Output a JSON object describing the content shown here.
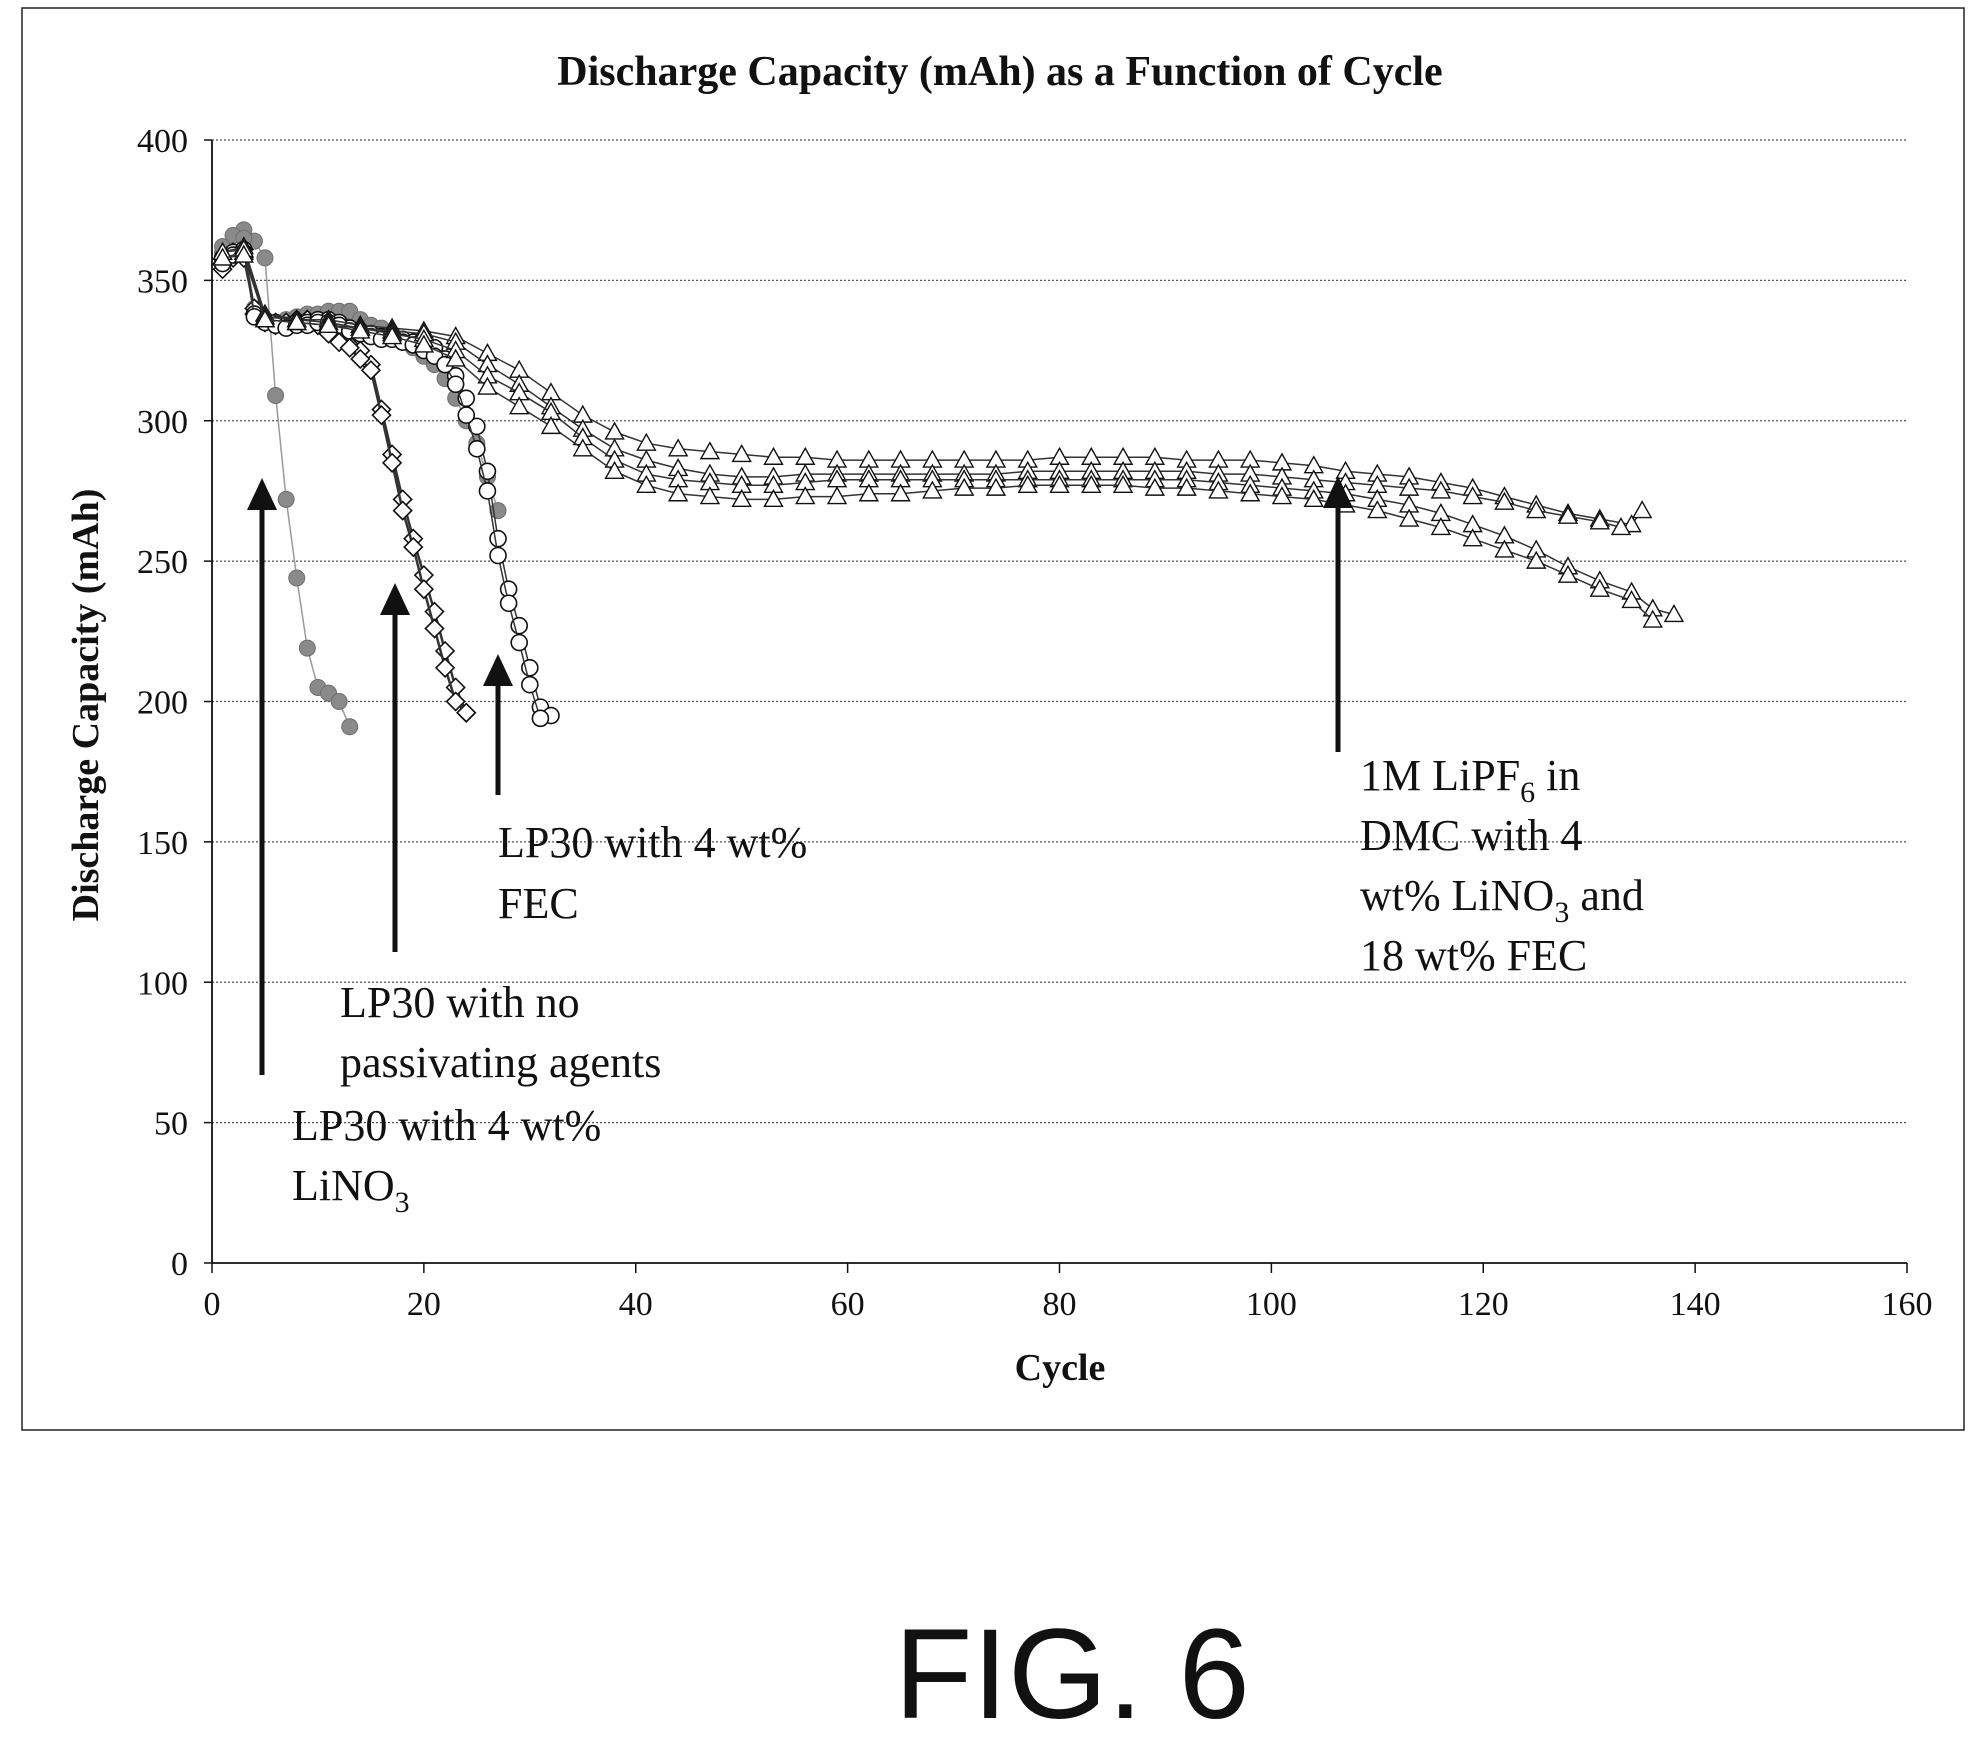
{
  "chart_data": {
    "type": "scatter",
    "title": "Discharge Capacity (mAh) as a Function of Cycle",
    "xlabel": "Cycle",
    "ylabel": "Discharge Capacity (mAh)",
    "xlim": [
      0,
      160
    ],
    "ylim": [
      0,
      400
    ],
    "xticks": [
      "0",
      "20",
      "40",
      "60",
      "80",
      "100",
      "120",
      "140",
      "160"
    ],
    "yticks": [
      "0",
      "50",
      "100",
      "150",
      "200",
      "250",
      "300",
      "350",
      "400"
    ],
    "grid": "horizontal dotted",
    "legend": "none",
    "series": [
      {
        "marker": "filled-circle",
        "color": "#8a8a8a",
        "cells": [
          {
            "x": [
              1,
              2,
              3,
              4,
              5,
              6,
              7,
              8,
              9,
              10,
              11,
              12,
              13
            ],
            "y": [
              360,
              366,
              368,
              364,
              358,
              309,
              272,
              244,
              219,
              205,
              203,
              200,
              191
            ]
          },
          {
            "x": [
              1,
              2,
              3,
              4,
              5,
              6,
              7,
              8,
              9,
              10,
              11,
              12,
              13,
              14,
              15,
              16,
              17,
              18,
              19,
              20,
              21,
              22,
              23,
              24,
              25,
              26,
              27
            ],
            "y": [
              362,
              366,
              365,
              340,
              336,
              334,
              336,
              337,
              338,
              338,
              339,
              339,
              339,
              336,
              334,
              333,
              331,
              329,
              326,
              323,
              320,
              315,
              308,
              300,
              292,
              280,
              268
            ]
          }
        ]
      },
      {
        "marker": "open-diamond",
        "color": "#111111",
        "cells": [
          {
            "x": [
              1,
              2,
              3,
              4,
              5,
              6,
              7,
              8,
              9,
              10,
              11,
              12,
              13,
              14,
              15,
              16,
              17,
              18,
              19,
              20,
              21,
              22,
              23,
              24
            ],
            "y": [
              356,
              360,
              361,
              338,
              335,
              334,
              335,
              336,
              336,
              334,
              332,
              329,
              327,
              325,
              320,
              304,
              288,
              272,
              258,
              245,
              232,
              218,
              205,
              196
            ]
          },
          {
            "x": [
              1,
              2,
              3,
              4,
              5,
              6,
              7,
              8,
              9,
              10,
              11,
              12,
              13,
              14,
              15,
              16,
              17,
              18,
              19,
              20,
              21,
              22,
              23,
              24
            ],
            "y": [
              354,
              358,
              358,
              340,
              336,
              335,
              335,
              336,
              336,
              334,
              331,
              328,
              326,
              322,
              318,
              302,
              285,
              268,
              255,
              240,
              226,
              212,
              200,
              196
            ]
          }
        ]
      },
      {
        "marker": "open-circle",
        "color": "#111111",
        "cells": [
          {
            "x": [
              1,
              2,
              3,
              4,
              5,
              6,
              7,
              8,
              9,
              10,
              11,
              12,
              13,
              14,
              15,
              16,
              17,
              18,
              19,
              20,
              21,
              22,
              23,
              24,
              25,
              26,
              27,
              28,
              29,
              30,
              31,
              32
            ],
            "y": [
              358,
              360,
              361,
              338,
              336,
              335,
              334,
              335,
              335,
              336,
              336,
              335,
              333,
              332,
              331,
              330,
              330,
              329,
              328,
              327,
              326,
              322,
              316,
              308,
              298,
              282,
              258,
              240,
              227,
              212,
              198,
              195
            ]
          },
          {
            "x": [
              1,
              2,
              3,
              4,
              5,
              6,
              7,
              8,
              9,
              10,
              11,
              12,
              13,
              14,
              15,
              16,
              17,
              18,
              19,
              20,
              21,
              22,
              23,
              24,
              25,
              26,
              27,
              28,
              29,
              30,
              31
            ],
            "y": [
              356,
              359,
              360,
              337,
              335,
              334,
              333,
              334,
              334,
              335,
              335,
              334,
              332,
              331,
              330,
              329,
              329,
              328,
              327,
              325,
              323,
              320,
              313,
              302,
              290,
              275,
              252,
              235,
              221,
              206,
              194
            ]
          }
        ]
      },
      {
        "marker": "open-triangle",
        "color": "#111111",
        "cells": [
          {
            "x": [
              1,
              3,
              5,
              8,
              11,
              14,
              17,
              20,
              23,
              26,
              29,
              32,
              35,
              38,
              41,
              44,
              47,
              50,
              53,
              56,
              59,
              62,
              65,
              68,
              71,
              74,
              77,
              80,
              83,
              86,
              89,
              92,
              95,
              98,
              101,
              104,
              107,
              110,
              113,
              116,
              119,
              122,
              125,
              128,
              131,
              134,
              135
            ],
            "y": [
              360,
              362,
              338,
              336,
              336,
              334,
              333,
              332,
              330,
              324,
              318,
              310,
              302,
              296,
              292,
              290,
              289,
              288,
              287,
              287,
              286,
              286,
              286,
              286,
              286,
              286,
              286,
              287,
              287,
              287,
              287,
              286,
              286,
              286,
              285,
              284,
              282,
              281,
              280,
              278,
              276,
              273,
              270,
              267,
              265,
              263,
              268
            ]
          },
          {
            "x": [
              1,
              3,
              5,
              8,
              11,
              14,
              17,
              20,
              23,
              26,
              29,
              32,
              35,
              38,
              41,
              44,
              47,
              50,
              53,
              56,
              59,
              62,
              65,
              68,
              71,
              74,
              77,
              80,
              83,
              86,
              89,
              92,
              95,
              98,
              101,
              104,
              107,
              110,
              113,
              116,
              119,
              122,
              125,
              128,
              131,
              133
            ],
            "y": [
              358,
              360,
              336,
              335,
              334,
              333,
              332,
              331,
              328,
              320,
              313,
              305,
              297,
              290,
              286,
              283,
              281,
              280,
              280,
              281,
              281,
              281,
              281,
              281,
              281,
              281,
              282,
              282,
              282,
              282,
              282,
              282,
              281,
              281,
              280,
              279,
              278,
              277,
              276,
              275,
              273,
              271,
              268,
              266,
              264,
              262
            ]
          },
          {
            "x": [
              1,
              3,
              5,
              8,
              11,
              14,
              17,
              20,
              23,
              26,
              29,
              32,
              35,
              38,
              41,
              44,
              47,
              50,
              53,
              56,
              59,
              62,
              65,
              68,
              71,
              74,
              77,
              80,
              83,
              86,
              89,
              92,
              95,
              98,
              101,
              104,
              107,
              110,
              113,
              116,
              119,
              122,
              125,
              128,
              131,
              134,
              136,
              138
            ],
            "y": [
              360,
              361,
              337,
              336,
              335,
              333,
              331,
              329,
              325,
              316,
              310,
              303,
              294,
              286,
              281,
              279,
              278,
              277,
              277,
              278,
              279,
              279,
              279,
              279,
              279,
              279,
              279,
              279,
              279,
              279,
              279,
              279,
              278,
              277,
              276,
              275,
              274,
              272,
              270,
              267,
              263,
              259,
              254,
              248,
              243,
              239,
              233,
              231
            ]
          },
          {
            "x": [
              1,
              3,
              5,
              8,
              11,
              14,
              17,
              20,
              23,
              26,
              29,
              32,
              35,
              38,
              41,
              44,
              47,
              50,
              53,
              56,
              59,
              62,
              65,
              68,
              71,
              74,
              77,
              80,
              83,
              86,
              89,
              92,
              95,
              98,
              101,
              104,
              107,
              110,
              113,
              116,
              119,
              122,
              125,
              128,
              131,
              134,
              136
            ],
            "y": [
              358,
              359,
              336,
              335,
              334,
              332,
              330,
              327,
              322,
              312,
              305,
              298,
              290,
              282,
              277,
              274,
              273,
              272,
              272,
              273,
              273,
              274,
              274,
              275,
              276,
              276,
              277,
              277,
              277,
              277,
              276,
              276,
              275,
              274,
              273,
              272,
              270,
              268,
              265,
              262,
              258,
              254,
              250,
              245,
              240,
              236,
              229
            ]
          }
        ]
      }
    ],
    "annotations": [
      {
        "id": "linoa",
        "line1": "LP30 with 4 wt%",
        "line2": "LiNO",
        "sub2": "3",
        "after2": ""
      },
      {
        "id": "none",
        "line1": "LP30 with no",
        "line2": "passivating agents"
      },
      {
        "id": "fec",
        "line1": "LP30 with 4 wt%",
        "line2": "FEC"
      },
      {
        "id": "dmc",
        "line1a": "1M LiPF",
        "sub1": "6",
        "line1b": " in",
        "line2": "DMC with 4",
        "line3a": "wt% LiNO",
        "sub3": "3",
        "line3b": " and",
        "line4": "18 wt% FEC"
      }
    ]
  },
  "figure_label": "FIG. 6"
}
